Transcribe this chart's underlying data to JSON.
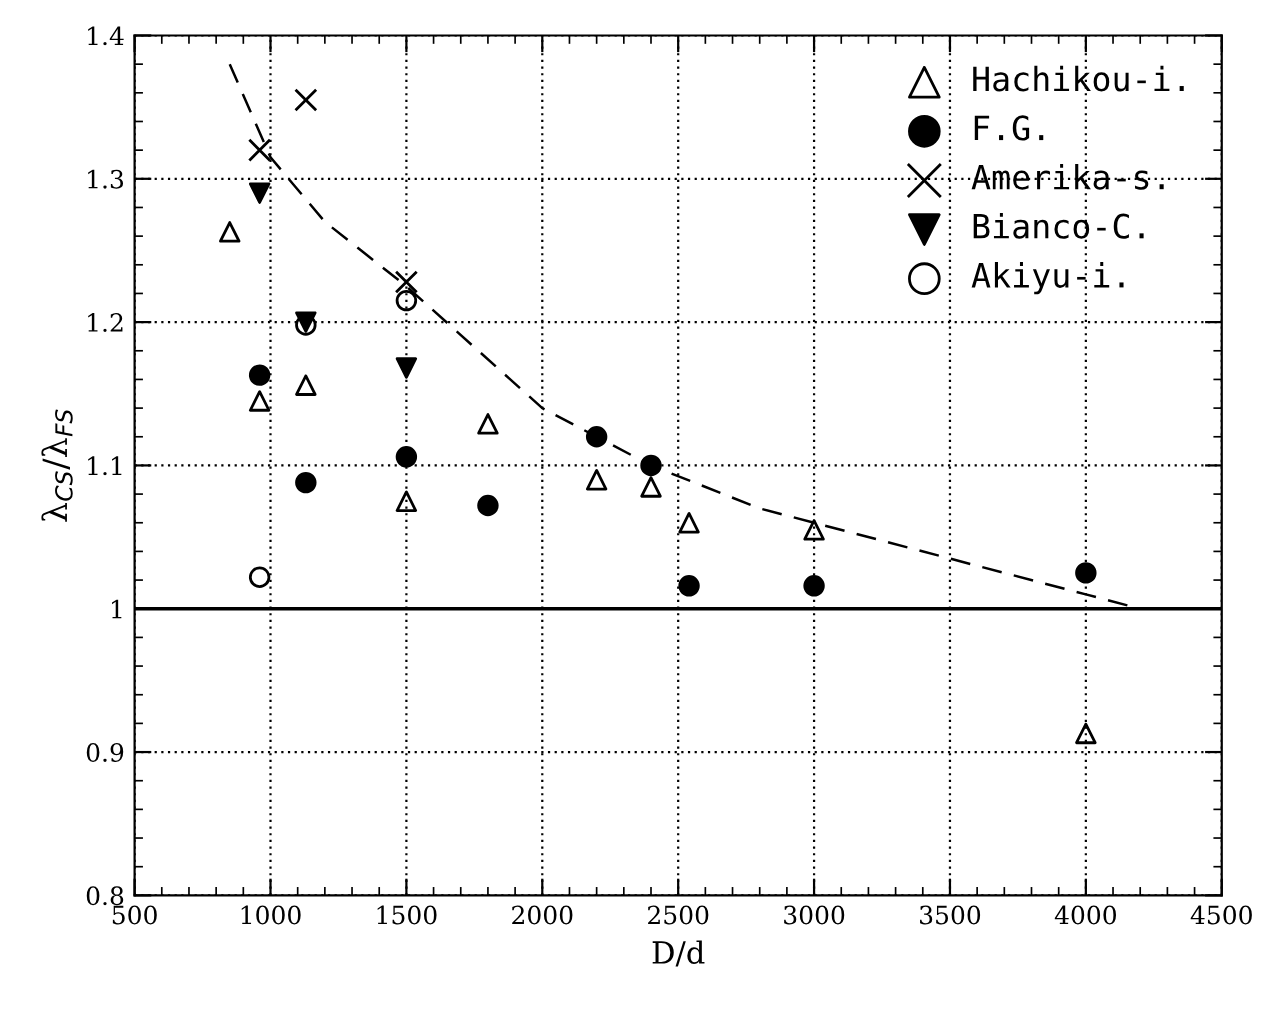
{
  "chart_data": {
    "type": "scatter",
    "xlabel": "D/d",
    "ylabel": "λ$_{CS}$/λ$_{FS}$",
    "xlim": [
      500,
      4500
    ],
    "xticks": [
      500,
      1000,
      1500,
      2000,
      2500,
      3000,
      3500,
      4000,
      4500
    ],
    "ylim": [
      0.8,
      1.4
    ],
    "yticks": [
      0.8,
      0.9,
      1,
      1.1,
      1.2,
      1.3,
      1.4
    ],
    "grid": true,
    "legend": "top right",
    "ref_lines": [
      {
        "axis": "y",
        "value": 1,
        "color": "#000000",
        "line_style": "solid"
      }
    ],
    "series": [
      {
        "name": "Hachikou-i.",
        "color": "#000000",
        "marker": "triangle",
        "x": [
          850,
          960,
          1130,
          1500,
          1800,
          2200,
          2400,
          2540,
          3000,
          4000
        ],
        "values": [
          1.263,
          1.145,
          1.156,
          1.075,
          1.129,
          1.09,
          1.085,
          1.06,
          1.055,
          0.913
        ]
      },
      {
        "name": "F.G.",
        "color": "#000000",
        "marker": "circle",
        "x": [
          960,
          1130,
          1500,
          1800,
          2200,
          2400,
          2540,
          3000,
          4000
        ],
        "values": [
          1.163,
          1.088,
          1.106,
          1.072,
          1.12,
          1.1,
          1.016,
          1.016,
          1.025
        ]
      },
      {
        "name": "Amerika-s.",
        "color": "#000000",
        "marker": "cross",
        "x": [
          960,
          1130,
          1500
        ],
        "values": [
          1.32,
          1.355,
          1.228
        ]
      },
      {
        "name": "Bianco-C.",
        "color": "#000000",
        "marker": "triangle_down",
        "x": [
          960,
          1130,
          1500
        ],
        "values": [
          1.29,
          1.2,
          1.168
        ]
      },
      {
        "name": "Akiyu-i.",
        "color": "#000000",
        "marker": "circle",
        "x": [
          960,
          1130,
          1500
        ],
        "values": [
          1.022,
          1.198,
          1.215
        ]
      },
      {
        "type": "line",
        "color": "#000000",
        "line_style": "dashed",
        "marker": "none",
        "x": [
          850,
          1000,
          1200,
          1500,
          2000,
          2400,
          2800,
          3000,
          3500,
          4000,
          4200
        ],
        "values": [
          1.38,
          1.315,
          1.27,
          1.225,
          1.14,
          1.1,
          1.07,
          1.06,
          1.035,
          1.01,
          1.0
        ]
      }
    ]
  }
}
